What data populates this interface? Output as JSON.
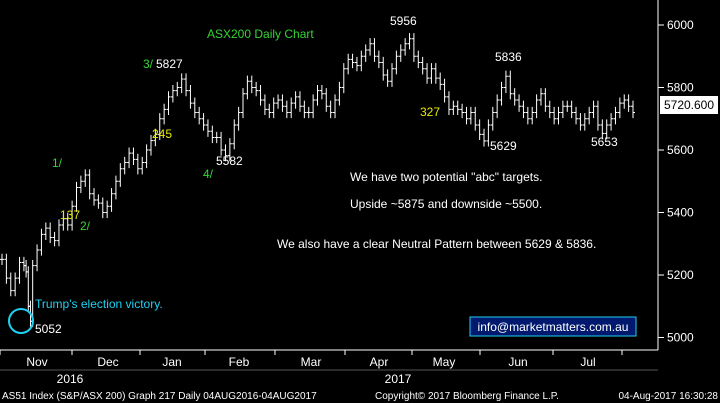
{
  "chart_data": {
    "type": "bar",
    "subtype": "ohlc",
    "title": "ASX200 Daily Chart",
    "ylim": [
      4960,
      6080
    ],
    "y_ticks": [
      5000,
      5200,
      5400,
      5600,
      5800,
      6000
    ],
    "last_price_label": "5720.600",
    "x_months": [
      "Nov",
      "Dec",
      "Jan",
      "Feb",
      "Mar",
      "Apr",
      "May",
      "Jun",
      "Jul"
    ],
    "x_years": [
      "2016",
      "2017"
    ],
    "grid": false,
    "series": [
      {
        "values": [
          [
            0,
            5250
          ],
          [
            2,
            5190
          ],
          [
            4,
            5150
          ],
          [
            6,
            5190
          ],
          [
            8,
            5240
          ],
          [
            10,
            5230
          ],
          [
            11,
            5210
          ],
          [
            12,
            5100
          ],
          [
            13,
            5052
          ],
          [
            14,
            5230
          ],
          [
            16,
            5280
          ],
          [
            18,
            5330
          ],
          [
            20,
            5350
          ],
          [
            22,
            5320
          ],
          [
            24,
            5310
          ],
          [
            26,
            5360
          ],
          [
            28,
            5380
          ],
          [
            30,
            5360
          ],
          [
            32,
            5420
          ],
          [
            34,
            5480
          ],
          [
            36,
            5500
          ],
          [
            38,
            5520
          ],
          [
            40,
            5460
          ],
          [
            42,
            5440
          ],
          [
            44,
            5430
          ],
          [
            46,
            5400
          ],
          [
            48,
            5420
          ],
          [
            50,
            5460
          ],
          [
            52,
            5500
          ],
          [
            54,
            5540
          ],
          [
            56,
            5560
          ],
          [
            58,
            5590
          ],
          [
            60,
            5570
          ],
          [
            62,
            5540
          ],
          [
            64,
            5560
          ],
          [
            66,
            5600
          ],
          [
            68,
            5630
          ],
          [
            70,
            5650
          ],
          [
            72,
            5700
          ],
          [
            74,
            5730
          ],
          [
            76,
            5770
          ],
          [
            78,
            5790
          ],
          [
            80,
            5800
          ],
          [
            82,
            5827
          ],
          [
            84,
            5790
          ],
          [
            86,
            5750
          ],
          [
            88,
            5720
          ],
          [
            90,
            5700
          ],
          [
            92,
            5680
          ],
          [
            94,
            5660
          ],
          [
            96,
            5640
          ],
          [
            98,
            5640
          ],
          [
            100,
            5600
          ],
          [
            102,
            5582
          ],
          [
            104,
            5620
          ],
          [
            106,
            5680
          ],
          [
            108,
            5720
          ],
          [
            110,
            5780
          ],
          [
            112,
            5820
          ],
          [
            114,
            5800
          ],
          [
            116,
            5790
          ],
          [
            118,
            5760
          ],
          [
            120,
            5730
          ],
          [
            122,
            5720
          ],
          [
            124,
            5750
          ],
          [
            126,
            5760
          ],
          [
            128,
            5740
          ],
          [
            130,
            5720
          ],
          [
            132,
            5750
          ],
          [
            134,
            5770
          ],
          [
            136,
            5740
          ],
          [
            138,
            5720
          ],
          [
            140,
            5720
          ],
          [
            142,
            5760
          ],
          [
            144,
            5790
          ],
          [
            146,
            5780
          ],
          [
            148,
            5740
          ],
          [
            150,
            5720
          ],
          [
            152,
            5760
          ],
          [
            154,
            5800
          ],
          [
            156,
            5860
          ],
          [
            158,
            5890
          ],
          [
            160,
            5880
          ],
          [
            162,
            5870
          ],
          [
            164,
            5900
          ],
          [
            166,
            5920
          ],
          [
            168,
            5940
          ],
          [
            170,
            5900
          ],
          [
            172,
            5880
          ],
          [
            174,
            5840
          ],
          [
            176,
            5820
          ],
          [
            178,
            5860
          ],
          [
            180,
            5900
          ],
          [
            182,
            5920
          ],
          [
            184,
            5940
          ],
          [
            186,
            5956
          ],
          [
            188,
            5900
          ],
          [
            190,
            5880
          ],
          [
            192,
            5860
          ],
          [
            194,
            5830
          ],
          [
            196,
            5860
          ],
          [
            198,
            5830
          ],
          [
            200,
            5810
          ],
          [
            202,
            5770
          ],
          [
            204,
            5730
          ],
          [
            206,
            5740
          ],
          [
            208,
            5730
          ],
          [
            210,
            5720
          ],
          [
            212,
            5700
          ],
          [
            214,
            5720
          ],
          [
            216,
            5680
          ],
          [
            218,
            5650
          ],
          [
            220,
            5629
          ],
          [
            222,
            5680
          ],
          [
            224,
            5720
          ],
          [
            226,
            5760
          ],
          [
            228,
            5800
          ],
          [
            230,
            5836
          ],
          [
            232,
            5780
          ],
          [
            234,
            5760
          ],
          [
            236,
            5740
          ],
          [
            238,
            5720
          ],
          [
            240,
            5700
          ],
          [
            242,
            5720
          ],
          [
            244,
            5760
          ],
          [
            246,
            5780
          ],
          [
            248,
            5740
          ],
          [
            250,
            5720
          ],
          [
            252,
            5700
          ],
          [
            254,
            5720
          ],
          [
            256,
            5740
          ],
          [
            258,
            5740
          ],
          [
            260,
            5720
          ],
          [
            262,
            5700
          ],
          [
            264,
            5680
          ],
          [
            266,
            5700
          ],
          [
            268,
            5720
          ],
          [
            270,
            5740
          ],
          [
            272,
            5680
          ],
          [
            274,
            5653
          ],
          [
            276,
            5680
          ],
          [
            278,
            5700
          ],
          [
            280,
            5720
          ],
          [
            282,
            5750
          ],
          [
            284,
            5760
          ],
          [
            286,
            5740
          ],
          [
            288,
            5720
          ]
        ]
      }
    ],
    "annotations": [
      {
        "text": "5956",
        "color": "white"
      },
      {
        "text": "5836",
        "color": "white"
      },
      {
        "text": "5827",
        "color": "white"
      },
      {
        "text": "3/",
        "color": "green"
      },
      {
        "text": "245",
        "color": "yellow"
      },
      {
        "text": "5582",
        "color": "white"
      },
      {
        "text": "4/",
        "color": "green"
      },
      {
        "text": "327",
        "color": "yellow"
      },
      {
        "text": "5629",
        "color": "white"
      },
      {
        "text": "5653",
        "color": "white"
      },
      {
        "text": "1/",
        "color": "green"
      },
      {
        "text": "137",
        "color": "yellow"
      },
      {
        "text": "2/",
        "color": "green"
      },
      {
        "text": "Trump's election victory.",
        "color": "cyan"
      },
      {
        "text": "5052",
        "color": "white"
      }
    ],
    "notes": [
      "We have two potential \"abc\" targets.",
      "Upside ~5875 and downside ~5500.",
      "We also have a clear Neutral Pattern between 5629 & 5836."
    ],
    "contact": "info@marketmatters.com.au",
    "footer": {
      "left": "AS51 Index (S&P/ASX 200) Graph 217  Daily 04AUG2016-04AUG2017",
      "center": "Copyright© 2017 Bloomberg Finance L.P.",
      "right": "04-Aug-2017 16:30:28"
    }
  }
}
